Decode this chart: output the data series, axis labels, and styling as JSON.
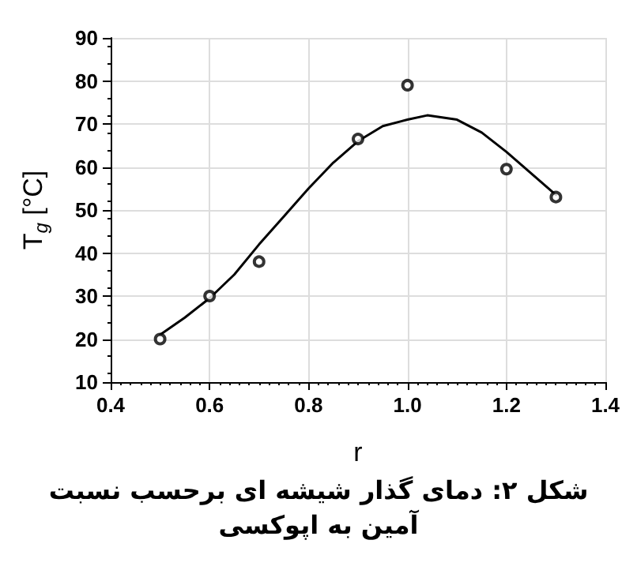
{
  "chart_data": {
    "type": "scatter",
    "xlabel": "r",
    "ylabel": "T$_{g}$ [°C]",
    "xlim": [
      0.4,
      1.4
    ],
    "xticks": [
      {
        "value": 0.4,
        "label": "0.4"
      },
      {
        "value": 0.6,
        "label": "0.6"
      },
      {
        "value": 0.8,
        "label": "0.8"
      },
      {
        "value": 1.0,
        "label": "1.0"
      },
      {
        "value": 1.2,
        "label": "1.2"
      },
      {
        "value": 1.4,
        "label": "1.4"
      }
    ],
    "ylim": [
      10,
      90
    ],
    "yticks": [
      10,
      20,
      30,
      40,
      50,
      60,
      70,
      80,
      90
    ],
    "grid": true,
    "series": [
      {
        "type": "scatter",
        "color": "#000000",
        "marker": "circle",
        "x": [
          0.5,
          0.6,
          0.7,
          0.9,
          1.0,
          1.2,
          1.3
        ],
        "values": [
          20,
          30,
          38,
          66.5,
          79,
          59.5,
          53
        ]
      },
      {
        "type": "line",
        "color": "#000000",
        "marker": "none",
        "line_style": "solid",
        "x": [
          0.5,
          0.55,
          0.6,
          0.65,
          0.7,
          0.75,
          0.8,
          0.85,
          0.9,
          0.95,
          1.0,
          1.04,
          1.1,
          1.15,
          1.2,
          1.25,
          1.3
        ],
        "values": [
          21,
          25,
          29.5,
          35,
          42,
          48.5,
          55,
          61,
          66,
          69.5,
          71,
          72,
          71,
          68,
          63.5,
          58.5,
          53.5
        ]
      }
    ],
    "annotations": [
      "شکل ۲: دمای گذار شیشه ای برحسب نسبت آمین به اپوکسی"
    ]
  }
}
